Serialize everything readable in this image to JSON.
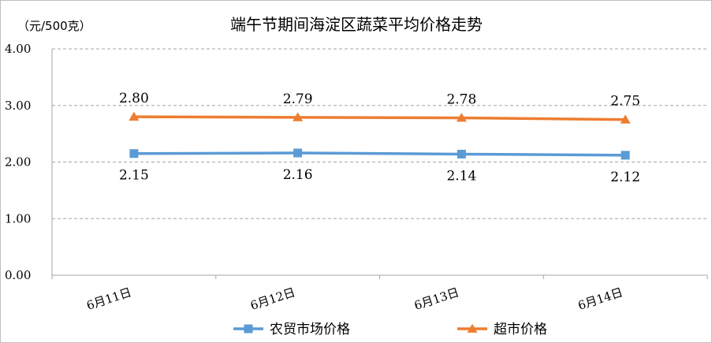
{
  "chart_data": {
    "type": "line",
    "title": "端午节期间海淀区蔬菜平均价格走势",
    "unit_label": "（元/500克）",
    "categories": [
      "6月11日",
      "6月12日",
      "6月13日",
      "6月14日"
    ],
    "ylim": [
      0,
      4
    ],
    "y_ticks": [
      "0.00",
      "1.00",
      "2.00",
      "3.00",
      "4.00"
    ],
    "grid": "horizontal dashed",
    "legend_position": "bottom",
    "series": [
      {
        "name": "农贸市场价格",
        "values": [
          2.15,
          2.16,
          2.14,
          2.12
        ],
        "labels": [
          "2.15",
          "2.16",
          "2.14",
          "2.12"
        ],
        "color": "#5B9BD5",
        "marker": "square",
        "label_position": "below"
      },
      {
        "name": "超市价格",
        "values": [
          2.8,
          2.79,
          2.78,
          2.75
        ],
        "labels": [
          "2.80",
          "2.79",
          "2.78",
          "2.75"
        ],
        "color": "#ED7D31",
        "marker": "triangle",
        "label_position": "above"
      }
    ]
  }
}
